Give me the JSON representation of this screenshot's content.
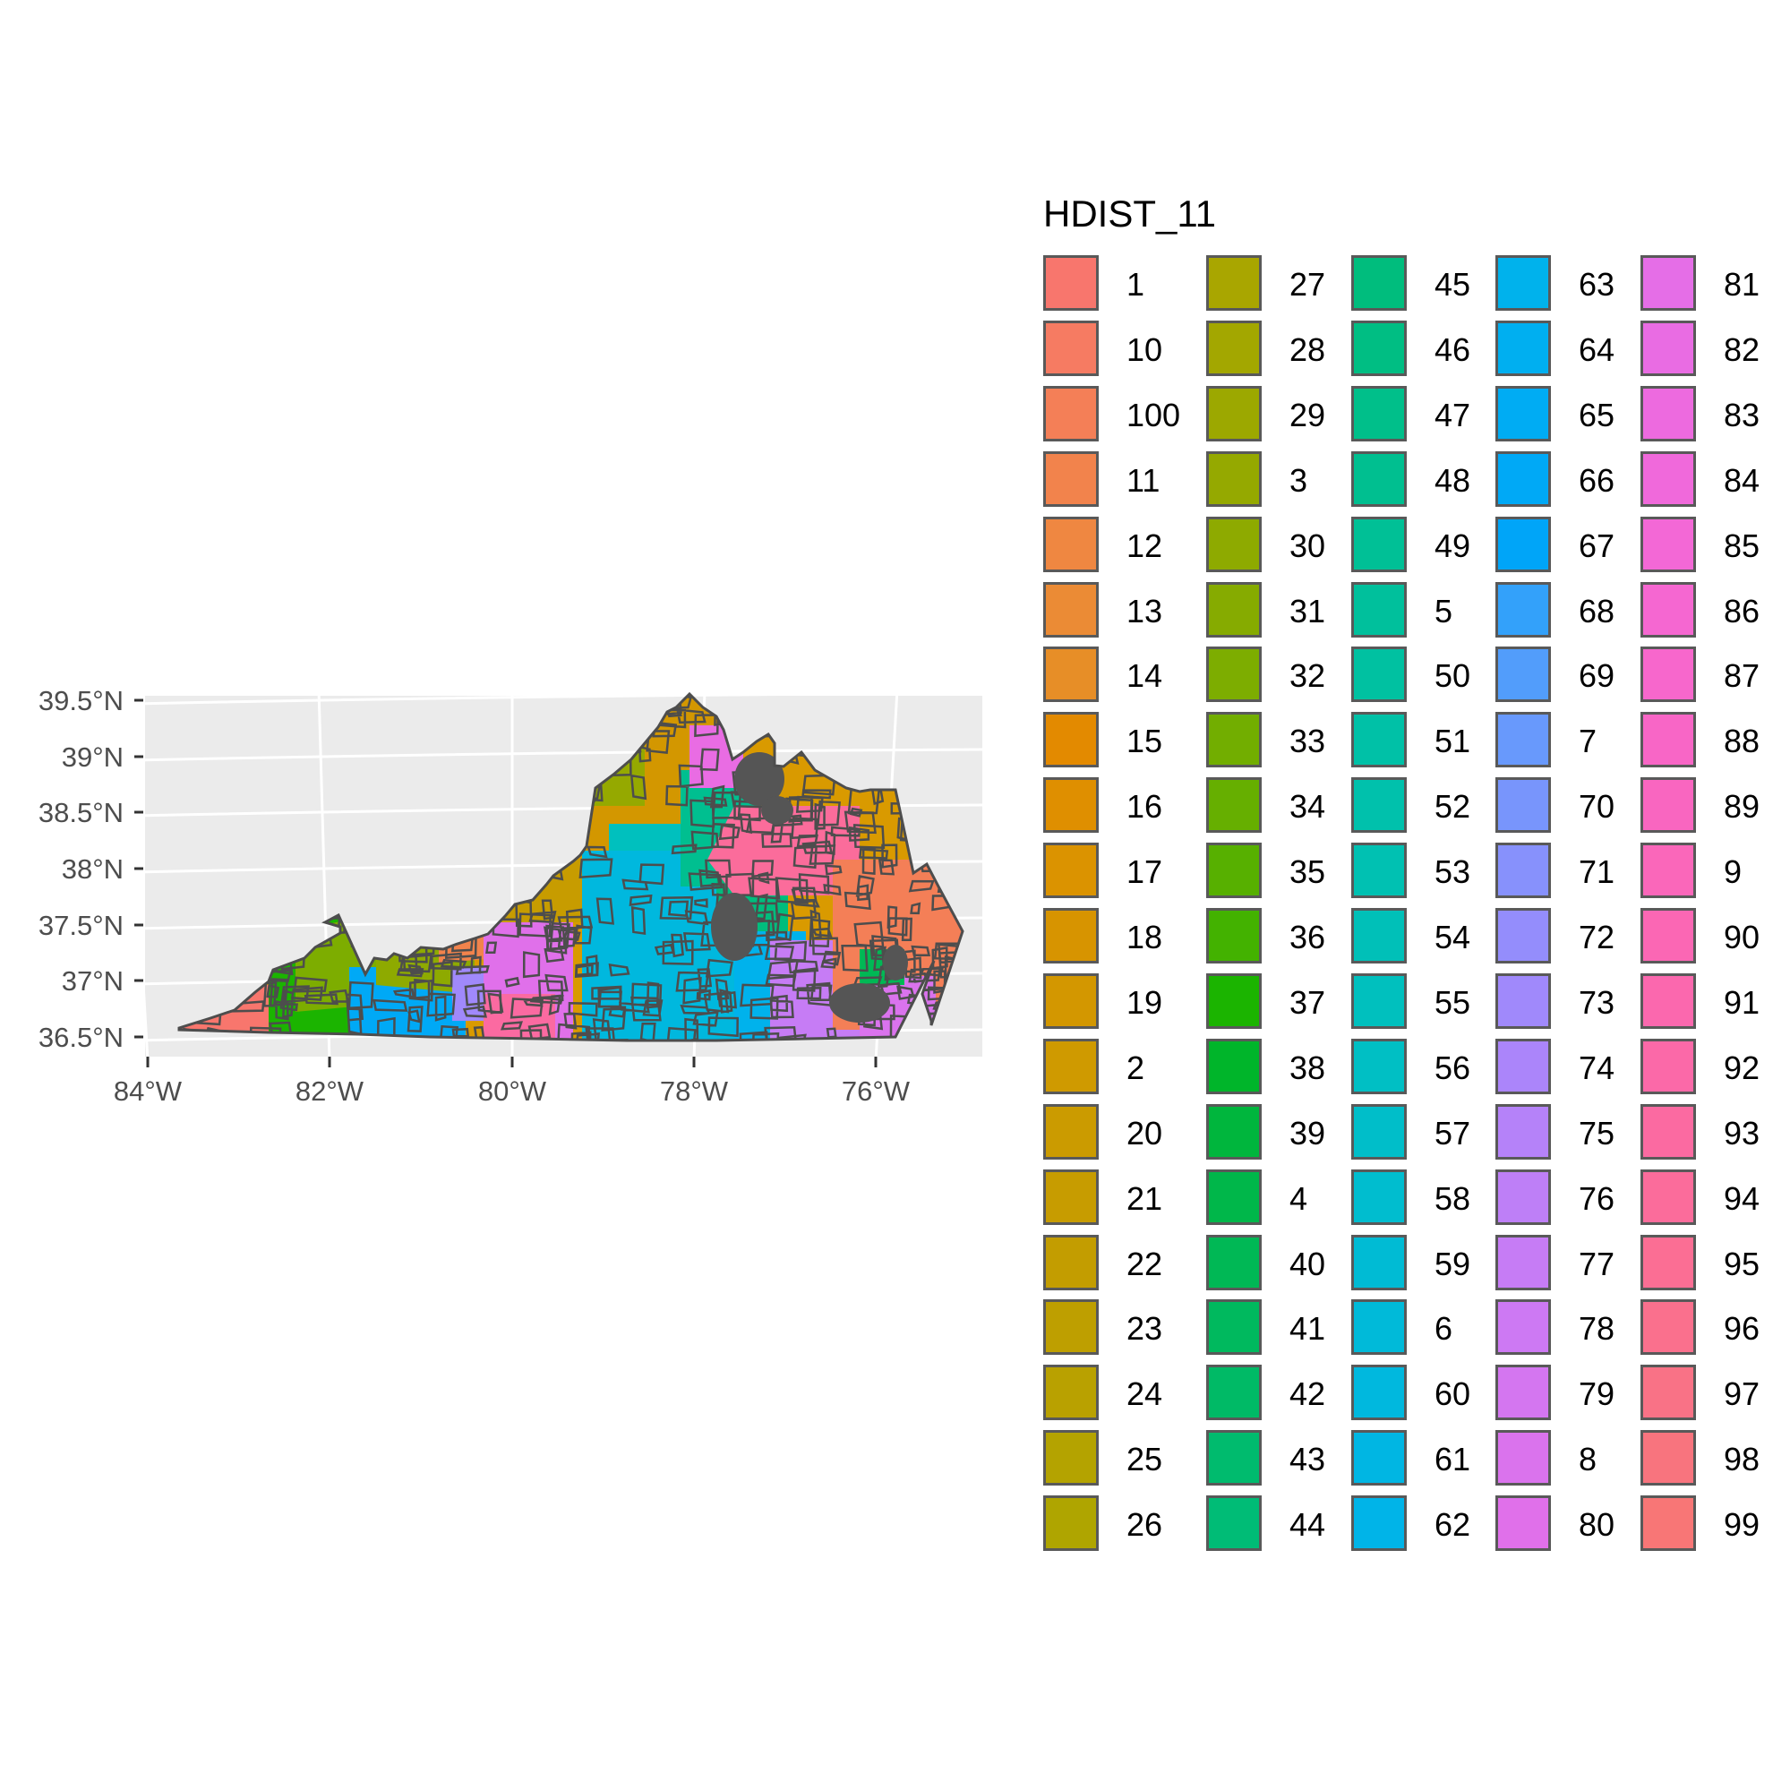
{
  "map": {
    "type": "choropleth",
    "region": "Virginia",
    "fill_variable": "HDIST_11",
    "panel_background": "#ebebeb",
    "gridline_color": "#ffffff",
    "border_color": "#4d4d4d",
    "y_axis": {
      "ticks": [
        "39.5°N",
        "39°N",
        "38.5°N",
        "38°N",
        "37.5°N",
        "37°N",
        "36.5°N"
      ],
      "values": [
        39.5,
        39.0,
        38.5,
        38.0,
        37.5,
        37.0,
        36.5
      ]
    },
    "x_axis": {
      "ticks": [
        "84°W",
        "82°W",
        "80°W",
        "78°W",
        "76°W"
      ],
      "values": [
        -84,
        -82,
        -80,
        -78,
        -76
      ]
    }
  },
  "legend": {
    "title": "HDIST_11",
    "items": [
      {
        "label": "1",
        "color": "#F8766D"
      },
      {
        "label": "10",
        "color": "#F67B62"
      },
      {
        "label": "100",
        "color": "#F47F57"
      },
      {
        "label": "11",
        "color": "#F2834C"
      },
      {
        "label": "12",
        "color": "#EF8741"
      },
      {
        "label": "13",
        "color": "#EB8B35"
      },
      {
        "label": "14",
        "color": "#E78E27"
      },
      {
        "label": "15",
        "color": "#E38A00"
      },
      {
        "label": "16",
        "color": "#DF8F00"
      },
      {
        "label": "17",
        "color": "#DB9300"
      },
      {
        "label": "18",
        "color": "#D79400"
      },
      {
        "label": "19",
        "color": "#D39700"
      },
      {
        "label": "2",
        "color": "#CF9A00"
      },
      {
        "label": "20",
        "color": "#CB9B00"
      },
      {
        "label": "21",
        "color": "#C79C00"
      },
      {
        "label": "22",
        "color": "#C39D00"
      },
      {
        "label": "23",
        "color": "#BE9F00"
      },
      {
        "label": "24",
        "color": "#B9A100"
      },
      {
        "label": "25",
        "color": "#B4A300"
      },
      {
        "label": "26",
        "color": "#AFA500"
      },
      {
        "label": "27",
        "color": "#A9A600"
      },
      {
        "label": "28",
        "color": "#A3A700"
      },
      {
        "label": "29",
        "color": "#9CA800"
      },
      {
        "label": "3",
        "color": "#95A900"
      },
      {
        "label": "30",
        "color": "#8EAA00"
      },
      {
        "label": "31",
        "color": "#86AB00"
      },
      {
        "label": "32",
        "color": "#7DAD00"
      },
      {
        "label": "33",
        "color": "#72AE00"
      },
      {
        "label": "34",
        "color": "#66AF00"
      },
      {
        "label": "35",
        "color": "#57B000"
      },
      {
        "label": "36",
        "color": "#43B200"
      },
      {
        "label": "37",
        "color": "#1BB400"
      },
      {
        "label": "38",
        "color": "#00B52A"
      },
      {
        "label": "39",
        "color": "#00B63D"
      },
      {
        "label": "4",
        "color": "#00B74A"
      },
      {
        "label": "40",
        "color": "#00B855"
      },
      {
        "label": "41",
        "color": "#00B95E"
      },
      {
        "label": "42",
        "color": "#00BA66"
      },
      {
        "label": "43",
        "color": "#00BB6E"
      },
      {
        "label": "44",
        "color": "#00BC76"
      },
      {
        "label": "45",
        "color": "#00BD7D"
      },
      {
        "label": "46",
        "color": "#00BE83"
      },
      {
        "label": "47",
        "color": "#00BF8A"
      },
      {
        "label": "48",
        "color": "#00BF90"
      },
      {
        "label": "49",
        "color": "#00C096"
      },
      {
        "label": "5",
        "color": "#00C09C"
      },
      {
        "label": "50",
        "color": "#00C1A1"
      },
      {
        "label": "51",
        "color": "#00C1A7"
      },
      {
        "label": "52",
        "color": "#00C1AC"
      },
      {
        "label": "53",
        "color": "#00C1B2"
      },
      {
        "label": "54",
        "color": "#00C0B8"
      },
      {
        "label": "55",
        "color": "#00C0BE"
      },
      {
        "label": "56",
        "color": "#00BFC4"
      },
      {
        "label": "57",
        "color": "#00BEC9"
      },
      {
        "label": "58",
        "color": "#00BDCF"
      },
      {
        "label": "59",
        "color": "#00BBD4"
      },
      {
        "label": "6",
        "color": "#00BAD9"
      },
      {
        "label": "60",
        "color": "#00B8DE"
      },
      {
        "label": "61",
        "color": "#00B6E3"
      },
      {
        "label": "62",
        "color": "#00B4E8"
      },
      {
        "label": "63",
        "color": "#00B2EC"
      },
      {
        "label": "64",
        "color": "#00AFF0"
      },
      {
        "label": "65",
        "color": "#00ACF3"
      },
      {
        "label": "66",
        "color": "#00A9F6"
      },
      {
        "label": "67",
        "color": "#00A5F8"
      },
      {
        "label": "68",
        "color": "#33A1FA"
      },
      {
        "label": "69",
        "color": "#529DFB"
      },
      {
        "label": "7",
        "color": "#6899FC"
      },
      {
        "label": "70",
        "color": "#7895FC"
      },
      {
        "label": "71",
        "color": "#8791FC"
      },
      {
        "label": "72",
        "color": "#948DFC"
      },
      {
        "label": "73",
        "color": "#A089FB"
      },
      {
        "label": "74",
        "color": "#AB85FA"
      },
      {
        "label": "75",
        "color": "#B582F9"
      },
      {
        "label": "76",
        "color": "#BE7FF7"
      },
      {
        "label": "77",
        "color": "#C67CF5"
      },
      {
        "label": "78",
        "color": "#CD79F3"
      },
      {
        "label": "79",
        "color": "#D476F0"
      },
      {
        "label": "8",
        "color": "#DA73ED"
      },
      {
        "label": "80",
        "color": "#E070EA"
      },
      {
        "label": "81",
        "color": "#E56EE7"
      },
      {
        "label": "82",
        "color": "#E96CE3"
      },
      {
        "label": "83",
        "color": "#ED6ADF"
      },
      {
        "label": "84",
        "color": "#F069DB"
      },
      {
        "label": "85",
        "color": "#F368D6"
      },
      {
        "label": "86",
        "color": "#F567D1"
      },
      {
        "label": "87",
        "color": "#F767CC"
      },
      {
        "label": "88",
        "color": "#F866C6"
      },
      {
        "label": "89",
        "color": "#F966C0"
      },
      {
        "label": "9",
        "color": "#FA67BA"
      },
      {
        "label": "90",
        "color": "#FB67B4"
      },
      {
        "label": "91",
        "color": "#FB68AE"
      },
      {
        "label": "92",
        "color": "#FB69A8"
      },
      {
        "label": "93",
        "color": "#FB6AA1"
      },
      {
        "label": "94",
        "color": "#FB6C9B"
      },
      {
        "label": "95",
        "color": "#FB6E94"
      },
      {
        "label": "96",
        "color": "#FA708D"
      },
      {
        "label": "97",
        "color": "#F97286"
      },
      {
        "label": "98",
        "color": "#F8747E"
      },
      {
        "label": "99",
        "color": "#F87676"
      }
    ]
  }
}
